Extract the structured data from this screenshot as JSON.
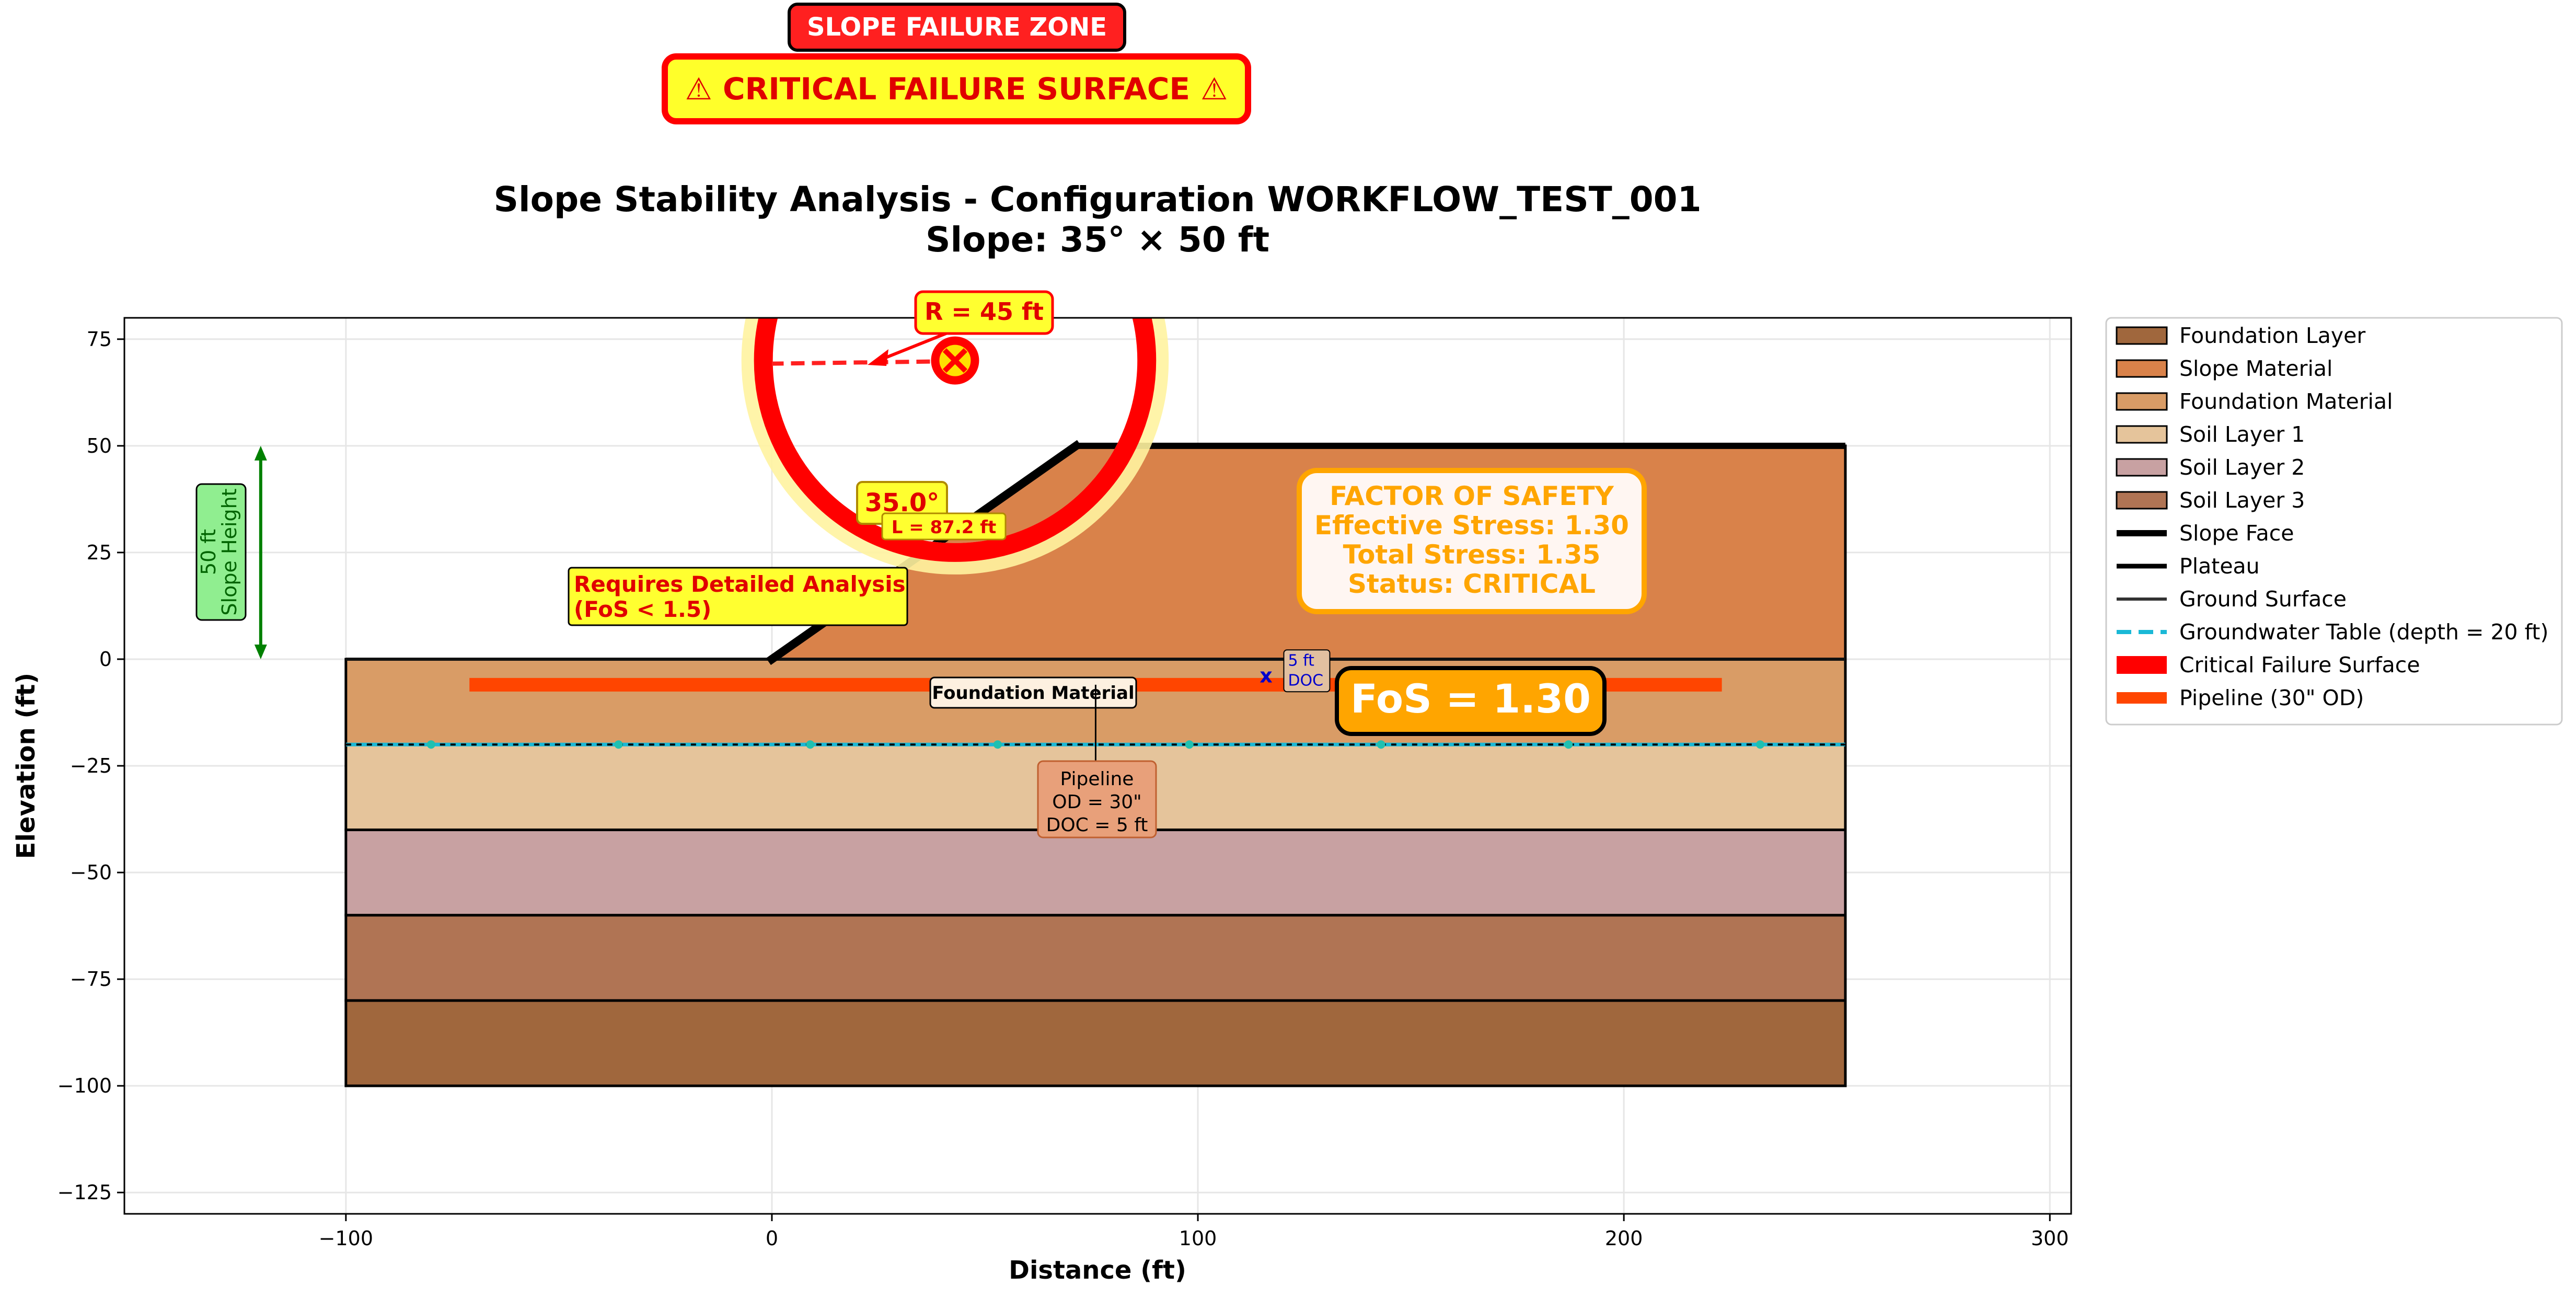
{
  "chart_data": {
    "type": "area",
    "title": "Slope Stability Analysis - Configuration WORKFLOW_TEST_001",
    "subtitle": "Slope: 35° × 50 ft",
    "xlabel": "Distance (ft)",
    "ylabel": "Elevation (ft)",
    "xlim": [
      -152,
      305
    ],
    "ylim": [
      -130,
      80
    ],
    "xticks": [
      -100,
      0,
      100,
      200,
      300
    ],
    "xtick_labels": [
      "−100",
      "0",
      "100",
      "200",
      "300"
    ],
    "yticks": [
      75,
      50,
      25,
      0,
      -25,
      -50,
      -75,
      -100,
      -125
    ],
    "ytick_labels": [
      "75",
      "50",
      "25",
      "0",
      "−25",
      "−50",
      "−75",
      "−100",
      "−125"
    ],
    "grid": true,
    "legend_position": "outside right",
    "legend": [
      {
        "label": "Foundation Layer",
        "kind": "patch",
        "color": "#a0673d"
      },
      {
        "label": "Slope Material",
        "kind": "patch",
        "color": "#d9824a"
      },
      {
        "label": "Foundation Material",
        "kind": "patch",
        "color": "#d99c66"
      },
      {
        "label": "Soil Layer 1",
        "kind": "patch",
        "color": "#e5c49b"
      },
      {
        "label": "Soil Layer 2",
        "kind": "patch",
        "color": "#c8a1a2"
      },
      {
        "label": "Soil Layer 3",
        "kind": "patch",
        "color": "#b07454"
      },
      {
        "label": "Slope Face",
        "kind": "line",
        "color": "#000000",
        "width": 12
      },
      {
        "label": "Plateau",
        "kind": "line",
        "color": "#000000",
        "width": 9
      },
      {
        "label": "Ground Surface",
        "kind": "line",
        "color": "#333333",
        "width": 6
      },
      {
        "label": "Groundwater Table (depth = 20 ft)",
        "kind": "dash",
        "color": "#1ab8d6",
        "width": 8
      },
      {
        "label": "Critical Failure Surface",
        "kind": "line",
        "color": "#ff0000",
        "width": 34
      },
      {
        "label": "Pipeline (30\" OD)",
        "kind": "line",
        "color": "#ff4500",
        "width": 22
      }
    ],
    "layers": [
      {
        "name": "Foundation Layer",
        "x": [
          -100,
          252
        ],
        "top": -80,
        "bottom": -100,
        "color": "#a0673d"
      },
      {
        "name": "Soil Layer 3",
        "x": [
          -100,
          252
        ],
        "top": -60,
        "bottom": -80,
        "color": "#b07454"
      },
      {
        "name": "Soil Layer 2",
        "x": [
          -100,
          252
        ],
        "top": -40,
        "bottom": -60,
        "color": "#c8a1a2"
      },
      {
        "name": "Soil Layer 1",
        "x": [
          -100,
          252
        ],
        "top": -20,
        "bottom": -40,
        "color": "#e5c49b"
      },
      {
        "name": "Foundation Material",
        "x": [
          -100,
          252
        ],
        "top": 0,
        "bottom": -20,
        "color": "#d99c66"
      }
    ],
    "slope_material": {
      "points": [
        [
          0,
          0
        ],
        [
          71.4,
          50
        ],
        [
          252,
          50
        ],
        [
          252,
          0
        ]
      ],
      "color": "#d9824a"
    },
    "slope_face": {
      "x": [
        0,
        71.4
      ],
      "y": [
        0,
        50
      ]
    },
    "plateau": {
      "x": [
        71.4,
        252
      ],
      "y": [
        50,
        50
      ]
    },
    "ground_surface": {
      "x": [
        -100,
        0
      ],
      "y": [
        0,
        0
      ]
    },
    "groundwater_table": {
      "y": -20,
      "x": [
        -100,
        252
      ],
      "marker_x": [
        -80,
        -36,
        9,
        53,
        98,
        143,
        187,
        232
      ]
    },
    "critical_failure_surface": {
      "center": [
        43,
        70
      ],
      "radius": 45
    },
    "pipeline": {
      "y": -6,
      "x": [
        -71,
        223
      ],
      "od_in": 30,
      "doc_ft": 5
    },
    "pipeline_marker": {
      "x": 116,
      "y": -2
    }
  },
  "annotations": {
    "slope_failure_zone": "SLOPE FAILURE ZONE",
    "critical_failure_surface": "⚠ CRITICAL FAILURE SURFACE ⚠",
    "radius_label": "R = 45 ft",
    "angle_label": "35.0°",
    "angle_sub": "L = 87.2 ft",
    "detailed_analysis_line1": "Requires Detailed Analysis",
    "detailed_analysis_line2": "(FoS < 1.5)",
    "slope_height_line1": "50 ft",
    "slope_height_line2": "Slope Height",
    "factor_heading": "FACTOR OF SAFETY",
    "factor_effective": "Effective Stress: 1.30",
    "factor_total": "Total Stress: 1.35",
    "factor_status": "Status: CRITICAL",
    "fos_badge": "FoS = 1.30",
    "foundation_material": "Foundation Material",
    "pipeline_line1": "Pipeline",
    "pipeline_line2": "OD = 30\"",
    "pipeline_line3": "DOC = 5 ft",
    "doc_line1": "5 ft",
    "doc_line2": "DOC"
  }
}
